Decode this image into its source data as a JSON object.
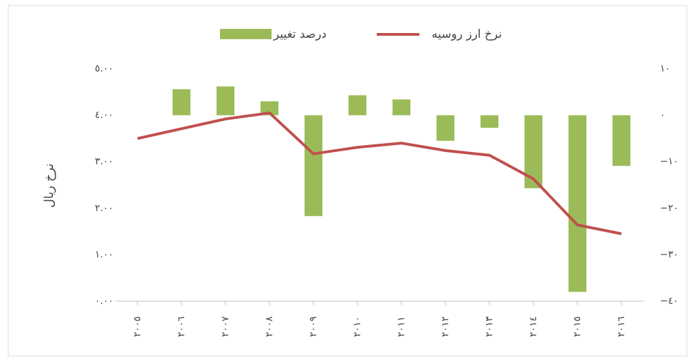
{
  "chart_data": {
    "type": "bar-line",
    "y_label": "نرخ ریال",
    "categories": [
      "٢٠٠٥",
      "٢٠٠٦",
      "٢٠٠٧",
      "٢٠٠٨",
      "٢٠٠٩",
      "٢٠١٠",
      "٢٠١١",
      "٢٠١٢",
      "٢٠١٣",
      "٢٠١٤",
      "٢٠١٥",
      "٢٠١٦"
    ],
    "series": [
      {
        "name": "درصد تغییر",
        "type": "bar",
        "axis": "y2",
        "color": "#9bbb59",
        "values": [
          null,
          5.6,
          6.2,
          3.0,
          -21.7,
          4.3,
          3.4,
          -5.5,
          -2.7,
          -15.7,
          -38.0,
          -10.9
        ]
      },
      {
        "name": "نرخ ارز روسیه",
        "type": "line",
        "axis": "y",
        "color": "#c0504d",
        "values": [
          3.5,
          3.71,
          3.92,
          4.05,
          3.17,
          3.31,
          3.4,
          3.24,
          3.14,
          2.63,
          1.64,
          1.45
        ]
      }
    ],
    "ylim": [
      0,
      5
    ],
    "yticks": [
      {
        "value": 0,
        "label": "٠.٠٠"
      },
      {
        "value": 1,
        "label": "١.٠٠"
      },
      {
        "value": 2,
        "label": "٢.٠٠"
      },
      {
        "value": 3,
        "label": "٣.٠٠"
      },
      {
        "value": 4,
        "label": "٤.٠٠"
      },
      {
        "value": 5,
        "label": "٥.٠٠"
      }
    ],
    "y2lim": [
      -40,
      10
    ],
    "y2ticks": [
      {
        "value": -40,
        "label": "−٤٠"
      },
      {
        "value": -30,
        "label": "−٣٠"
      },
      {
        "value": -20,
        "label": "−٢٠"
      },
      {
        "value": -10,
        "label": "−١٠"
      },
      {
        "value": 0,
        "label": "٠"
      },
      {
        "value": 10,
        "label": "١٠"
      }
    ]
  }
}
